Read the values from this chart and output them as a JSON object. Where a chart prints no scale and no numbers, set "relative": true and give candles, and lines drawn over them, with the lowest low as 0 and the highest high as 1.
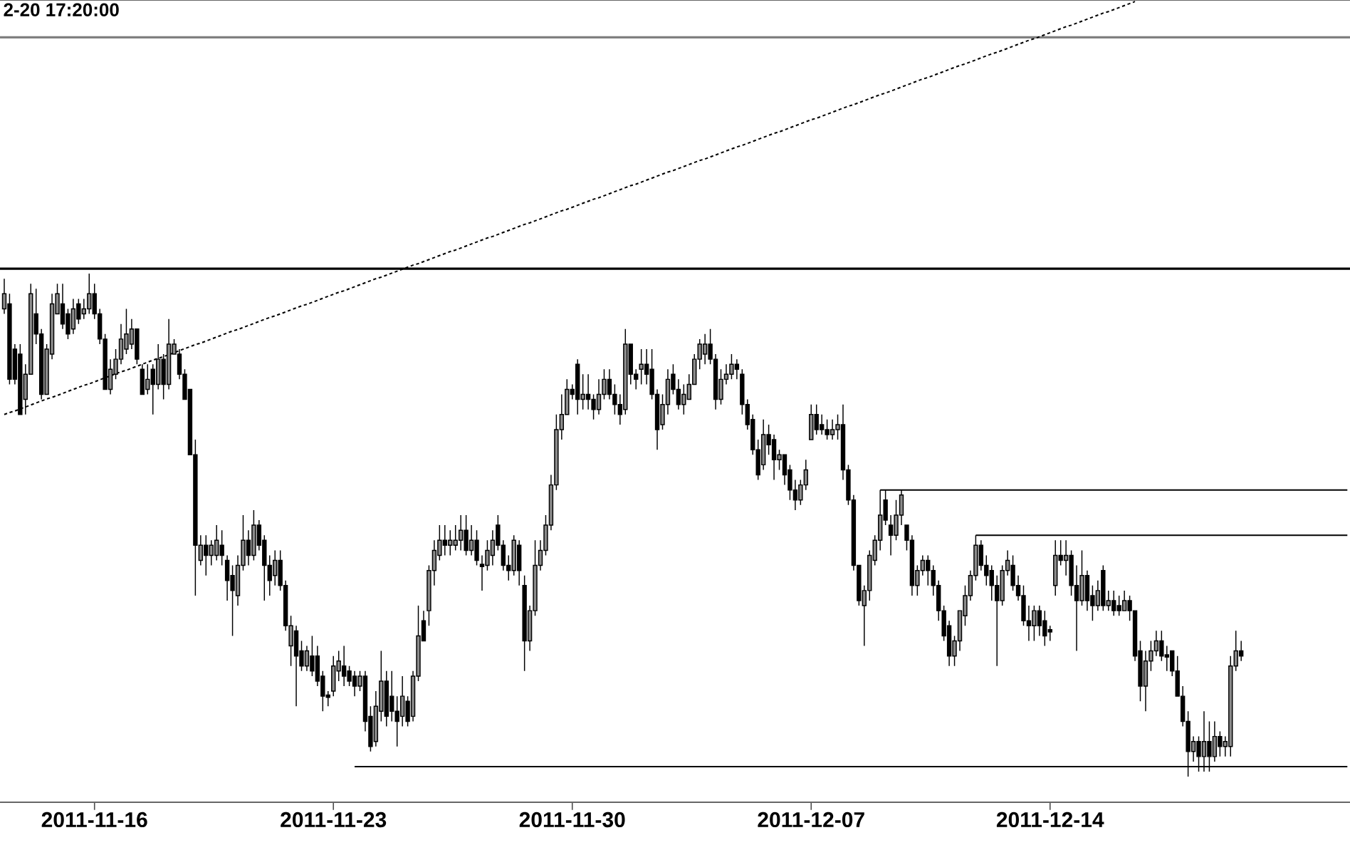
{
  "chart_data": {
    "type": "candlestick",
    "title": "2-20 17:20:00",
    "relative": true,
    "color": "#000000",
    "tick_labels": "x",
    "categories": [
      null,
      null,
      null,
      null,
      null,
      null,
      null,
      null,
      null,
      null,
      null,
      null,
      null,
      null,
      null,
      null,
      null,
      "2011-11-16",
      null,
      null,
      null,
      null,
      null,
      null,
      null,
      null,
      null,
      null,
      null,
      null,
      null,
      null,
      null,
      null,
      null,
      null,
      null,
      null,
      null,
      null,
      null,
      null,
      null,
      null,
      null,
      null,
      null,
      null,
      null,
      null,
      null,
      null,
      null,
      null,
      null,
      null,
      null,
      null,
      null,
      null,
      null,
      null,
      "2011-11-23",
      null,
      null,
      null,
      null,
      null,
      null,
      null,
      null,
      null,
      null,
      null,
      null,
      null,
      null,
      null,
      null,
      null,
      null,
      null,
      null,
      null,
      null,
      null,
      null,
      null,
      null,
      null,
      null,
      null,
      null,
      null,
      null,
      null,
      null,
      null,
      null,
      null,
      null,
      null,
      null,
      null,
      null,
      null,
      null,
      "2011-11-30",
      null,
      null,
      null,
      null,
      null,
      null,
      null,
      null,
      null,
      null,
      null,
      null,
      null,
      null,
      null,
      null,
      null,
      null,
      null,
      null,
      null,
      null,
      null,
      null,
      null,
      null,
      null,
      null,
      null,
      null,
      null,
      null,
      null,
      null,
      null,
      null,
      null,
      null,
      null,
      null,
      null,
      null,
      null,
      null,
      "2011-12-07",
      null,
      null,
      null,
      null,
      null,
      null,
      null,
      null,
      null,
      null,
      null,
      null,
      null,
      null,
      null,
      null,
      null,
      null,
      null,
      null,
      null,
      null,
      null,
      null,
      null,
      null,
      null,
      null,
      null,
      null,
      null,
      null,
      null,
      null,
      null,
      null,
      null,
      null,
      null,
      null,
      null,
      null,
      null,
      null,
      "2011-12-14",
      null,
      null,
      null,
      null,
      null,
      null,
      null,
      null,
      null,
      null,
      null,
      null,
      null,
      null,
      null,
      null,
      null,
      null,
      null,
      null,
      null,
      null,
      null,
      null,
      null,
      null,
      null,
      null,
      null,
      null,
      null,
      null,
      null,
      null,
      null,
      null,
      null,
      null,
      null,
      null,
      null,
      null,
      null,
      null,
      null,
      null,
      null,
      null,
      null,
      null,
      null,
      null,
      null,
      null,
      null,
      null
    ],
    "ohlc": [
      [
        0.93,
        0.99,
        0.92,
        0.96
      ],
      [
        0.94,
        0.96,
        0.78,
        0.79
      ],
      [
        0.85,
        0.86,
        0.78,
        0.79
      ],
      [
        0.84,
        0.86,
        0.72,
        0.72
      ],
      [
        0.75,
        0.82,
        0.72,
        0.8
      ],
      [
        0.8,
        0.98,
        0.8,
        0.96
      ],
      [
        0.92,
        0.97,
        0.86,
        0.88
      ],
      [
        0.88,
        0.89,
        0.75,
        0.76
      ],
      [
        0.76,
        0.86,
        0.76,
        0.85
      ],
      [
        0.84,
        0.96,
        0.83,
        0.94
      ],
      [
        0.92,
        0.98,
        0.92,
        0.96
      ],
      [
        0.94,
        0.98,
        0.89,
        0.9
      ],
      [
        0.92,
        0.93,
        0.87,
        0.88
      ],
      [
        0.89,
        0.95,
        0.88,
        0.93
      ],
      [
        0.94,
        0.95,
        0.9,
        0.91
      ],
      [
        0.92,
        0.95,
        0.91,
        0.93
      ],
      [
        0.93,
        1.0,
        0.92,
        0.96
      ],
      [
        0.96,
        0.98,
        0.91,
        0.92
      ],
      [
        0.92,
        0.93,
        0.86,
        0.87
      ],
      [
        0.87,
        0.88,
        0.77,
        0.77
      ],
      [
        0.77,
        0.83,
        0.76,
        0.81
      ],
      [
        0.8,
        0.85,
        0.79,
        0.83
      ],
      [
        0.83,
        0.9,
        0.82,
        0.87
      ],
      [
        0.85,
        0.93,
        0.84,
        0.88
      ],
      [
        0.86,
        0.91,
        0.85,
        0.89
      ],
      [
        0.89,
        0.89,
        0.82,
        0.83
      ],
      [
        0.81,
        0.82,
        0.76,
        0.76
      ],
      [
        0.77,
        0.82,
        0.76,
        0.79
      ],
      [
        0.81,
        0.82,
        0.72,
        0.78
      ],
      [
        0.78,
        0.86,
        0.77,
        0.83
      ],
      [
        0.83,
        0.84,
        0.75,
        0.78
      ],
      [
        0.78,
        0.91,
        0.77,
        0.86
      ],
      [
        0.84,
        0.87,
        0.84,
        0.86
      ],
      [
        0.84,
        0.85,
        0.79,
        0.8
      ],
      [
        0.8,
        0.81,
        0.75,
        0.75
      ],
      [
        0.77,
        0.77,
        0.64,
        0.64
      ],
      [
        0.64,
        0.67,
        0.36,
        0.46
      ],
      [
        0.43,
        0.48,
        0.42,
        0.46
      ],
      [
        0.46,
        0.48,
        0.4,
        0.44
      ],
      [
        0.44,
        0.47,
        0.42,
        0.46
      ],
      [
        0.44,
        0.5,
        0.43,
        0.47
      ],
      [
        0.46,
        0.49,
        0.42,
        0.44
      ],
      [
        0.43,
        0.44,
        0.35,
        0.39
      ],
      [
        0.4,
        0.42,
        0.28,
        0.37
      ],
      [
        0.36,
        0.44,
        0.34,
        0.42
      ],
      [
        0.42,
        0.52,
        0.41,
        0.47
      ],
      [
        0.47,
        0.49,
        0.42,
        0.44
      ],
      [
        0.44,
        0.53,
        0.43,
        0.5
      ],
      [
        0.5,
        0.51,
        0.45,
        0.46
      ],
      [
        0.47,
        0.48,
        0.35,
        0.42
      ],
      [
        0.42,
        0.44,
        0.36,
        0.39
      ],
      [
        0.4,
        0.45,
        0.38,
        0.43
      ],
      [
        0.43,
        0.45,
        0.37,
        0.38
      ],
      [
        0.38,
        0.39,
        0.29,
        0.3
      ],
      [
        0.26,
        0.32,
        0.22,
        0.3
      ],
      [
        0.29,
        0.3,
        0.14,
        0.24
      ],
      [
        0.25,
        0.27,
        0.21,
        0.22
      ],
      [
        0.22,
        0.26,
        0.21,
        0.25
      ],
      [
        0.24,
        0.28,
        0.2,
        0.21
      ],
      [
        0.24,
        0.26,
        0.18,
        0.19
      ],
      [
        0.2,
        0.21,
        0.13,
        0.16
      ],
      [
        0.16,
        0.17,
        0.14,
        0.16
      ],
      [
        0.17,
        0.24,
        0.16,
        0.22
      ],
      [
        0.21,
        0.25,
        0.19,
        0.23
      ],
      [
        0.22,
        0.26,
        0.18,
        0.2
      ],
      [
        0.21,
        0.22,
        0.18,
        0.19
      ],
      [
        0.2,
        0.21,
        0.16,
        0.18
      ],
      [
        0.18,
        0.21,
        0.17,
        0.2
      ],
      [
        0.2,
        0.21,
        0.09,
        0.11
      ],
      [
        0.12,
        0.14,
        0.05,
        0.06
      ],
      [
        0.07,
        0.17,
        0.06,
        0.14
      ],
      [
        0.13,
        0.25,
        0.11,
        0.19
      ],
      [
        0.19,
        0.21,
        0.1,
        0.12
      ],
      [
        0.16,
        0.21,
        0.11,
        0.13
      ],
      [
        0.13,
        0.16,
        0.06,
        0.11
      ],
      [
        0.12,
        0.2,
        0.1,
        0.16
      ],
      [
        0.15,
        0.16,
        0.1,
        0.11
      ],
      [
        0.12,
        0.21,
        0.11,
        0.2
      ],
      [
        0.2,
        0.34,
        0.19,
        0.28
      ],
      [
        0.31,
        0.33,
        0.27,
        0.27
      ],
      [
        0.33,
        0.42,
        0.3,
        0.41
      ],
      [
        0.41,
        0.47,
        0.38,
        0.45
      ],
      [
        0.44,
        0.5,
        0.43,
        0.47
      ],
      [
        0.47,
        0.5,
        0.44,
        0.46
      ],
      [
        0.46,
        0.49,
        0.44,
        0.47
      ],
      [
        0.46,
        0.5,
        0.45,
        0.47
      ],
      [
        0.47,
        0.52,
        0.45,
        0.49
      ],
      [
        0.49,
        0.52,
        0.44,
        0.45
      ],
      [
        0.45,
        0.5,
        0.44,
        0.47
      ],
      [
        0.47,
        0.49,
        0.42,
        0.43
      ],
      [
        0.42,
        0.44,
        0.37,
        0.42
      ],
      [
        0.42,
        0.47,
        0.41,
        0.45
      ],
      [
        0.44,
        0.49,
        0.42,
        0.47
      ],
      [
        0.5,
        0.52,
        0.45,
        0.46
      ],
      [
        0.46,
        0.47,
        0.41,
        0.42
      ],
      [
        0.42,
        0.44,
        0.39,
        0.41
      ],
      [
        0.41,
        0.48,
        0.4,
        0.47
      ],
      [
        0.46,
        0.47,
        0.38,
        0.41
      ],
      [
        0.38,
        0.4,
        0.21,
        0.27
      ],
      [
        0.27,
        0.34,
        0.25,
        0.33
      ],
      [
        0.33,
        0.47,
        0.32,
        0.42
      ],
      [
        0.42,
        0.47,
        0.41,
        0.45
      ],
      [
        0.45,
        0.52,
        0.44,
        0.5
      ],
      [
        0.5,
        0.6,
        0.49,
        0.58
      ],
      [
        0.58,
        0.72,
        0.57,
        0.69
      ],
      [
        0.69,
        0.76,
        0.67,
        0.72
      ],
      [
        0.72,
        0.79,
        0.72,
        0.77
      ],
      [
        0.77,
        0.78,
        0.75,
        0.76
      ],
      [
        0.82,
        0.83,
        0.72,
        0.75
      ],
      [
        0.75,
        0.8,
        0.73,
        0.76
      ],
      [
        0.76,
        0.8,
        0.73,
        0.75
      ],
      [
        0.75,
        0.76,
        0.71,
        0.73
      ],
      [
        0.73,
        0.79,
        0.72,
        0.76
      ],
      [
        0.76,
        0.81,
        0.75,
        0.79
      ],
      [
        0.79,
        0.81,
        0.75,
        0.76
      ],
      [
        0.76,
        0.78,
        0.72,
        0.74
      ],
      [
        0.74,
        0.76,
        0.7,
        0.72
      ],
      [
        0.73,
        0.89,
        0.72,
        0.86
      ],
      [
        0.86,
        0.86,
        0.78,
        0.8
      ],
      [
        0.8,
        0.81,
        0.77,
        0.79
      ],
      [
        0.81,
        0.85,
        0.78,
        0.82
      ],
      [
        0.82,
        0.85,
        0.78,
        0.8
      ],
      [
        0.81,
        0.85,
        0.75,
        0.76
      ],
      [
        0.76,
        0.77,
        0.65,
        0.69
      ],
      [
        0.7,
        0.76,
        0.69,
        0.74
      ],
      [
        0.74,
        0.81,
        0.72,
        0.79
      ],
      [
        0.8,
        0.82,
        0.76,
        0.77
      ],
      [
        0.77,
        0.79,
        0.73,
        0.74
      ],
      [
        0.74,
        0.78,
        0.72,
        0.76
      ],
      [
        0.75,
        0.8,
        0.75,
        0.78
      ],
      [
        0.78,
        0.84,
        0.78,
        0.83
      ],
      [
        0.83,
        0.87,
        0.81,
        0.86
      ],
      [
        0.84,
        0.88,
        0.82,
        0.86
      ],
      [
        0.86,
        0.89,
        0.82,
        0.83
      ],
      [
        0.83,
        0.84,
        0.73,
        0.75
      ],
      [
        0.75,
        0.81,
        0.74,
        0.79
      ],
      [
        0.79,
        0.82,
        0.78,
        0.8
      ],
      [
        0.8,
        0.84,
        0.79,
        0.82
      ],
      [
        0.82,
        0.83,
        0.79,
        0.81
      ],
      [
        0.8,
        0.81,
        0.72,
        0.74
      ],
      [
        0.74,
        0.75,
        0.69,
        0.7
      ],
      [
        0.71,
        0.72,
        0.64,
        0.65
      ],
      [
        0.65,
        0.67,
        0.59,
        0.6
      ],
      [
        0.62,
        0.71,
        0.61,
        0.68
      ],
      [
        0.68,
        0.7,
        0.64,
        0.66
      ],
      [
        0.67,
        0.68,
        0.59,
        0.63
      ],
      [
        0.63,
        0.65,
        0.61,
        0.64
      ],
      [
        0.64,
        0.64,
        0.58,
        0.6
      ],
      [
        0.61,
        0.62,
        0.55,
        0.57
      ],
      [
        0.57,
        0.59,
        0.53,
        0.55
      ],
      [
        0.55,
        0.59,
        0.54,
        0.58
      ],
      [
        0.58,
        0.63,
        0.57,
        0.61
      ],
      [
        0.67,
        0.74,
        0.67,
        0.72
      ],
      [
        0.72,
        0.74,
        0.68,
        0.69
      ],
      [
        0.7,
        0.72,
        0.68,
        0.69
      ],
      [
        0.69,
        0.71,
        0.67,
        0.68
      ],
      [
        0.68,
        0.71,
        0.67,
        0.69
      ],
      [
        0.69,
        0.72,
        0.67,
        0.7
      ],
      [
        0.7,
        0.74,
        0.59,
        0.61
      ],
      [
        0.61,
        0.62,
        0.54,
        0.55
      ],
      [
        0.55,
        0.56,
        0.41,
        0.42
      ],
      [
        0.42,
        0.42,
        0.34,
        0.35
      ],
      [
        0.34,
        0.38,
        0.26,
        0.37
      ],
      [
        0.37,
        0.45,
        0.35,
        0.44
      ],
      [
        0.43,
        0.48,
        0.42,
        0.47
      ],
      [
        0.47,
        0.57,
        0.45,
        0.52
      ],
      [
        0.55,
        0.57,
        0.5,
        0.51
      ],
      [
        0.5,
        0.52,
        0.44,
        0.48
      ],
      [
        0.48,
        0.55,
        0.47,
        0.52
      ],
      [
        0.52,
        0.57,
        0.5,
        0.56
      ],
      [
        0.5,
        0.5,
        0.45,
        0.47
      ],
      [
        0.47,
        0.48,
        0.36,
        0.38
      ],
      [
        0.38,
        0.42,
        0.36,
        0.41
      ],
      [
        0.41,
        0.44,
        0.4,
        0.43
      ],
      [
        0.43,
        0.44,
        0.38,
        0.41
      ],
      [
        0.41,
        0.42,
        0.36,
        0.38
      ],
      [
        0.38,
        0.39,
        0.31,
        0.33
      ],
      [
        0.33,
        0.34,
        0.27,
        0.28
      ],
      [
        0.3,
        0.31,
        0.22,
        0.24
      ],
      [
        0.24,
        0.28,
        0.22,
        0.27
      ],
      [
        0.27,
        0.33,
        0.25,
        0.33
      ],
      [
        0.32,
        0.38,
        0.3,
        0.36
      ],
      [
        0.36,
        0.41,
        0.35,
        0.4
      ],
      [
        0.4,
        0.48,
        0.39,
        0.46
      ],
      [
        0.46,
        0.47,
        0.41,
        0.42
      ],
      [
        0.42,
        0.44,
        0.38,
        0.4
      ],
      [
        0.41,
        0.42,
        0.35,
        0.38
      ],
      [
        0.38,
        0.4,
        0.22,
        0.35
      ],
      [
        0.35,
        0.42,
        0.34,
        0.41
      ],
      [
        0.41,
        0.45,
        0.4,
        0.43
      ],
      [
        0.42,
        0.44,
        0.37,
        0.38
      ],
      [
        0.38,
        0.4,
        0.35,
        0.36
      ],
      [
        0.36,
        0.38,
        0.3,
        0.31
      ],
      [
        0.31,
        0.34,
        0.27,
        0.3
      ],
      [
        0.3,
        0.34,
        0.27,
        0.33
      ],
      [
        0.33,
        0.34,
        0.28,
        0.3
      ],
      [
        0.31,
        0.33,
        0.26,
        0.28
      ],
      [
        0.29,
        0.3,
        0.27,
        0.29
      ],
      [
        0.38,
        0.47,
        0.36,
        0.44
      ],
      [
        0.44,
        0.47,
        0.42,
        0.43
      ],
      [
        0.43,
        0.47,
        0.4,
        0.44
      ],
      [
        0.44,
        0.45,
        0.36,
        0.38
      ],
      [
        0.38,
        0.42,
        0.25,
        0.35
      ],
      [
        0.35,
        0.45,
        0.34,
        0.4
      ],
      [
        0.4,
        0.41,
        0.33,
        0.35
      ],
      [
        0.36,
        0.38,
        0.31,
        0.34
      ],
      [
        0.34,
        0.39,
        0.33,
        0.37
      ],
      [
        0.41,
        0.42,
        0.33,
        0.34
      ],
      [
        0.34,
        0.37,
        0.33,
        0.35
      ],
      [
        0.35,
        0.37,
        0.32,
        0.33
      ],
      [
        0.34,
        0.36,
        0.32,
        0.33
      ],
      [
        0.33,
        0.37,
        0.33,
        0.35
      ],
      [
        0.35,
        0.36,
        0.31,
        0.33
      ],
      [
        0.33,
        0.33,
        0.23,
        0.24
      ],
      [
        0.25,
        0.27,
        0.15,
        0.18
      ],
      [
        0.18,
        0.25,
        0.13,
        0.23
      ],
      [
        0.23,
        0.27,
        0.21,
        0.25
      ],
      [
        0.25,
        0.29,
        0.24,
        0.27
      ],
      [
        0.27,
        0.29,
        0.23,
        0.24
      ],
      [
        0.24,
        0.26,
        0.21,
        0.24
      ],
      [
        0.25,
        0.25,
        0.2,
        0.21
      ],
      [
        0.21,
        0.24,
        0.16,
        0.16
      ],
      [
        0.16,
        0.18,
        0.1,
        0.11
      ],
      [
        0.11,
        0.13,
        0.0,
        0.05
      ],
      [
        0.05,
        0.08,
        0.03,
        0.07
      ],
      [
        0.07,
        0.08,
        0.01,
        0.04
      ],
      [
        0.04,
        0.13,
        0.01,
        0.07
      ],
      [
        0.07,
        0.11,
        0.01,
        0.04
      ],
      [
        0.04,
        0.11,
        0.03,
        0.08
      ],
      [
        0.08,
        0.09,
        0.04,
        0.06
      ],
      [
        0.06,
        0.08,
        0.04,
        0.07
      ],
      [
        0.06,
        0.24,
        0.04,
        0.22
      ],
      [
        0.22,
        0.29,
        0.21,
        0.25
      ],
      [
        0.25,
        0.27,
        0.23,
        0.24
      ],
      null,
      null,
      null,
      null,
      null,
      null,
      null,
      null,
      null,
      null,
      null,
      null,
      null,
      null,
      null,
      null,
      null,
      null,
      null,
      null
    ],
    "series": [
      {
        "type": "line",
        "color": "#000000",
        "line_style": "dotted",
        "values": [
          0.72,
          0.724,
          0.727,
          0.731,
          0.735,
          0.739,
          0.743,
          0.747,
          0.751,
          0.754,
          0.758,
          0.762,
          0.766,
          0.77,
          0.774,
          0.778,
          0.781,
          0.785,
          0.789,
          0.793,
          0.797,
          0.801,
          0.805,
          0.808,
          0.812,
          0.816,
          0.82,
          0.824,
          0.828,
          0.832,
          0.835,
          0.839,
          0.843,
          0.847,
          0.851,
          0.855,
          0.859,
          0.862,
          0.866,
          0.87,
          0.874,
          0.878,
          0.882,
          0.886,
          0.889,
          0.893,
          0.897,
          0.901,
          0.905,
          0.909,
          0.913,
          0.916,
          0.92,
          0.924,
          0.928,
          0.932,
          0.936,
          0.939,
          0.943,
          0.947,
          0.951,
          0.955,
          0.959,
          0.963,
          0.966,
          0.97,
          0.974,
          0.978,
          0.982,
          0.986,
          0.99,
          0.993,
          0.997,
          1.001,
          1.005,
          1.009,
          1.013,
          1.017,
          1.02,
          1.024,
          1.028,
          1.032,
          1.036,
          1.04,
          1.044,
          1.047,
          1.051,
          1.055,
          1.059,
          1.063,
          1.067,
          1.071,
          1.074,
          1.078,
          1.082,
          1.086,
          1.09,
          1.094,
          1.098,
          1.101,
          1.105,
          1.109,
          1.113,
          1.117,
          1.121,
          1.125,
          1.128,
          1.132,
          1.136,
          1.14,
          1.144,
          1.148,
          1.151,
          1.155,
          1.159,
          1.163,
          1.167,
          1.171,
          1.175,
          1.178,
          1.182,
          1.186,
          1.19,
          1.194,
          1.198,
          1.202,
          1.205,
          1.209,
          1.213,
          1.217,
          1.221,
          1.225,
          1.228,
          1.232,
          1.236,
          1.24,
          1.244,
          1.248,
          1.252,
          1.255,
          1.259,
          1.263,
          1.267,
          1.271,
          1.275,
          1.279,
          1.282,
          1.286,
          1.29,
          1.294,
          1.298,
          1.302,
          1.306,
          1.309,
          1.313,
          1.317,
          1.321,
          1.325,
          1.329,
          1.333,
          1.336,
          1.34,
          1.344,
          1.348,
          1.352,
          1.356,
          1.359,
          1.363,
          1.367,
          1.371,
          1.375,
          1.379,
          1.383,
          1.387,
          1.39,
          1.394,
          1.398,
          1.402,
          1.406,
          1.41,
          1.414,
          1.417,
          1.421,
          1.425,
          1.429,
          1.433,
          1.437,
          1.44,
          1.444,
          1.448,
          1.452,
          1.456,
          1.46,
          1.464,
          1.467,
          1.471,
          1.475,
          1.479,
          1.483,
          1.487,
          1.491,
          1.494,
          1.498,
          1.502,
          1.506,
          1.51,
          1.514,
          1.518,
          1.521,
          1.525,
          1.529,
          1.533,
          1.537,
          1.541,
          null,
          null,
          null,
          null,
          null,
          null,
          null,
          null,
          null,
          null,
          null,
          null,
          null,
          null,
          null,
          null,
          null,
          null,
          null,
          null,
          null,
          null,
          null,
          null,
          null,
          null,
          null,
          null,
          null,
          null,
          null,
          null,
          null,
          null,
          null,
          null,
          null,
          null,
          null,
          null
        ]
      },
      {
        "type": "line",
        "color": "#000000",
        "values": [
          null,
          null,
          null,
          null,
          null,
          null,
          null,
          null,
          null,
          null,
          null,
          null,
          null,
          null,
          null,
          null,
          null,
          null,
          null,
          null,
          null,
          null,
          null,
          null,
          null,
          null,
          null,
          null,
          null,
          null,
          null,
          null,
          null,
          null,
          null,
          null,
          null,
          null,
          null,
          null,
          null,
          null,
          null,
          null,
          null,
          null,
          null,
          null,
          null,
          null,
          null,
          null,
          null,
          null,
          null,
          null,
          null,
          null,
          null,
          null,
          null,
          null,
          null,
          null,
          null,
          null,
          0.02,
          0.02,
          0.02,
          0.02,
          0.02,
          0.02,
          0.02,
          0.02,
          0.02,
          0.02,
          0.02,
          0.02,
          0.02,
          0.02,
          0.02,
          0.02,
          0.02,
          0.02,
          0.02,
          0.02,
          0.02,
          0.02,
          0.02,
          0.02,
          0.02,
          0.02,
          0.02,
          0.02,
          0.02,
          0.02,
          0.02,
          0.02,
          0.02,
          0.02,
          0.02,
          0.02,
          0.02,
          0.02,
          0.02,
          0.02,
          0.02,
          0.02,
          0.02,
          0.02,
          0.02,
          0.02,
          0.02,
          0.02,
          0.02,
          0.02,
          0.02,
          0.02,
          0.02,
          0.02,
          0.02,
          0.02,
          0.02,
          0.02,
          0.02,
          0.02,
          0.02,
          0.02,
          0.02,
          0.02,
          0.02,
          0.02,
          0.02,
          0.02,
          0.02,
          0.02,
          0.02,
          0.02,
          0.02,
          0.02,
          0.02,
          0.02,
          0.02,
          0.02,
          0.02,
          0.02,
          0.02,
          0.02,
          0.02,
          0.02,
          0.02,
          0.02,
          0.02,
          0.02,
          0.02,
          0.02,
          0.02,
          0.02,
          0.02,
          0.02,
          0.02,
          0.02,
          0.02,
          0.02,
          0.02,
          0.02,
          0.02,
          0.02,
          0.02,
          0.02,
          0.02,
          0.02,
          0.02,
          0.02,
          0.02,
          0.02,
          0.02,
          0.02,
          0.02,
          0.02,
          0.02,
          0.02,
          0.02,
          0.02,
          0.02,
          0.02,
          0.02,
          0.02,
          0.02,
          0.02,
          0.02,
          0.02,
          0.02,
          0.02,
          0.02,
          0.02,
          0.02,
          0.02,
          0.02,
          0.02,
          0.02,
          0.02,
          0.02,
          0.02,
          0.02,
          0.02,
          0.02,
          0.02,
          0.02,
          0.02,
          0.02,
          0.02,
          0.02,
          0.02,
          0.02,
          0.02,
          0.02,
          0.02,
          0.02,
          0.02,
          0.02,
          0.02,
          0.02,
          0.02,
          0.02,
          0.02,
          0.02,
          0.02,
          0.02,
          0.02,
          0.02,
          0.02,
          0.02,
          0.02,
          0.02,
          0.02,
          0.02,
          0.02,
          0.02,
          0.02,
          0.02,
          0.02,
          0.02,
          0.02,
          0.02,
          0.02,
          0.02,
          0.02,
          0.02,
          0.02,
          0.02,
          0.02,
          0.02,
          0.02
        ]
      },
      {
        "type": "line",
        "color": "#000000",
        "values": [
          null,
          null,
          null,
          null,
          null,
          null,
          null,
          null,
          null,
          null,
          null,
          null,
          null,
          null,
          null,
          null,
          null,
          null,
          null,
          null,
          null,
          null,
          null,
          null,
          null,
          null,
          null,
          null,
          null,
          null,
          null,
          null,
          null,
          null,
          null,
          null,
          null,
          null,
          null,
          null,
          null,
          null,
          null,
          null,
          null,
          null,
          null,
          null,
          null,
          null,
          null,
          null,
          null,
          null,
          null,
          null,
          null,
          null,
          null,
          null,
          null,
          null,
          null,
          null,
          null,
          null,
          null,
          null,
          null,
          null,
          null,
          null,
          null,
          null,
          null,
          null,
          null,
          null,
          null,
          null,
          null,
          null,
          null,
          null,
          null,
          null,
          null,
          null,
          null,
          null,
          null,
          null,
          null,
          null,
          null,
          null,
          null,
          null,
          null,
          null,
          null,
          null,
          null,
          null,
          null,
          null,
          null,
          null,
          null,
          null,
          null,
          null,
          null,
          null,
          null,
          null,
          null,
          null,
          null,
          null,
          null,
          null,
          null,
          null,
          null,
          null,
          null,
          null,
          null,
          null,
          null,
          null,
          null,
          null,
          null,
          null,
          null,
          null,
          null,
          null,
          null,
          null,
          null,
          null,
          null,
          null,
          null,
          null,
          null,
          null,
          null,
          null,
          null,
          null,
          null,
          null,
          null,
          null,
          null,
          null,
          null,
          null,
          null,
          null,
          null,
          0.57,
          0.57,
          0.57,
          0.57,
          0.57,
          0.57,
          0.57,
          0.57,
          0.57,
          0.57,
          0.57,
          0.57,
          0.57,
          0.57,
          0.57,
          0.57,
          0.57,
          0.57,
          0.57,
          0.57,
          0.57,
          0.57,
          0.57,
          0.57,
          0.57,
          0.57,
          0.57,
          0.57,
          0.57,
          0.57,
          0.57,
          0.57,
          0.57,
          0.57,
          0.57,
          0.57,
          0.57,
          0.57,
          0.57,
          0.57,
          0.57,
          0.57,
          0.57,
          0.57,
          0.57,
          0.57,
          0.57,
          0.57,
          0.57,
          0.57,
          0.57,
          0.57,
          0.57,
          0.57,
          0.57,
          0.57,
          0.57,
          0.57,
          0.57,
          0.57,
          0.57,
          0.57,
          0.57,
          0.57,
          0.57,
          0.57,
          0.57,
          0.57,
          0.57,
          0.57,
          0.57,
          0.57,
          0.57,
          0.57,
          0.57,
          0.57,
          0.57,
          0.57,
          0.57,
          0.57,
          0.57,
          0.57,
          0.57,
          0.57,
          0.57,
          0.57,
          0.57,
          0.57,
          0.57
        ]
      },
      {
        "type": "line",
        "color": "#000000",
        "values": [
          null,
          null,
          null,
          null,
          null,
          null,
          null,
          null,
          null,
          null,
          null,
          null,
          null,
          null,
          null,
          null,
          null,
          null,
          null,
          null,
          null,
          null,
          null,
          null,
          null,
          null,
          null,
          null,
          null,
          null,
          null,
          null,
          null,
          null,
          null,
          null,
          null,
          null,
          null,
          null,
          null,
          null,
          null,
          null,
          null,
          null,
          null,
          null,
          null,
          null,
          null,
          null,
          null,
          null,
          null,
          null,
          null,
          null,
          null,
          null,
          null,
          null,
          null,
          null,
          null,
          null,
          null,
          null,
          null,
          null,
          null,
          null,
          null,
          null,
          null,
          null,
          null,
          null,
          null,
          null,
          null,
          null,
          null,
          null,
          null,
          null,
          null,
          null,
          null,
          null,
          null,
          null,
          null,
          null,
          null,
          null,
          null,
          null,
          null,
          null,
          null,
          null,
          null,
          null,
          null,
          null,
          null,
          null,
          null,
          null,
          null,
          null,
          null,
          null,
          null,
          null,
          null,
          null,
          null,
          null,
          null,
          null,
          null,
          null,
          null,
          null,
          null,
          null,
          null,
          null,
          null,
          null,
          null,
          null,
          null,
          null,
          null,
          null,
          null,
          null,
          null,
          null,
          null,
          null,
          null,
          null,
          null,
          null,
          null,
          null,
          null,
          null,
          null,
          null,
          null,
          null,
          null,
          null,
          null,
          null,
          null,
          null,
          null,
          null,
          null,
          null,
          null,
          null,
          null,
          null,
          null,
          null,
          null,
          null,
          null,
          null,
          null,
          null,
          null,
          null,
          null,
          null,
          null,
          0.48,
          0.48,
          0.48,
          0.48,
          0.48,
          0.48,
          0.48,
          0.48,
          0.48,
          0.48,
          0.48,
          0.48,
          0.48,
          0.48,
          0.48,
          0.48,
          0.48,
          0.48,
          0.48,
          0.48,
          0.48,
          0.48,
          0.48,
          0.48,
          0.48,
          0.48,
          0.48,
          0.48,
          0.48,
          0.48,
          0.48,
          0.48,
          0.48,
          0.48,
          0.48,
          0.48,
          0.48,
          0.48,
          0.48,
          0.48,
          0.48,
          0.48,
          0.48,
          0.48,
          0.48,
          0.48,
          0.48,
          0.48,
          0.48,
          0.48,
          0.48,
          0.48,
          0.48,
          0.48,
          0.48,
          0.48,
          0.48,
          0.48,
          0.48,
          0.48,
          0.48,
          0.48,
          0.48,
          0.48,
          0.48,
          0.48,
          0.48,
          0.48,
          0.48,
          0.48,
          0.48
        ]
      }
    ],
    "ref_lines": [
      {
        "axis": "y",
        "value": 1.47,
        "color": "#808080"
      },
      {
        "axis": "y",
        "value": 1.01,
        "color": "#000000"
      }
    ]
  }
}
